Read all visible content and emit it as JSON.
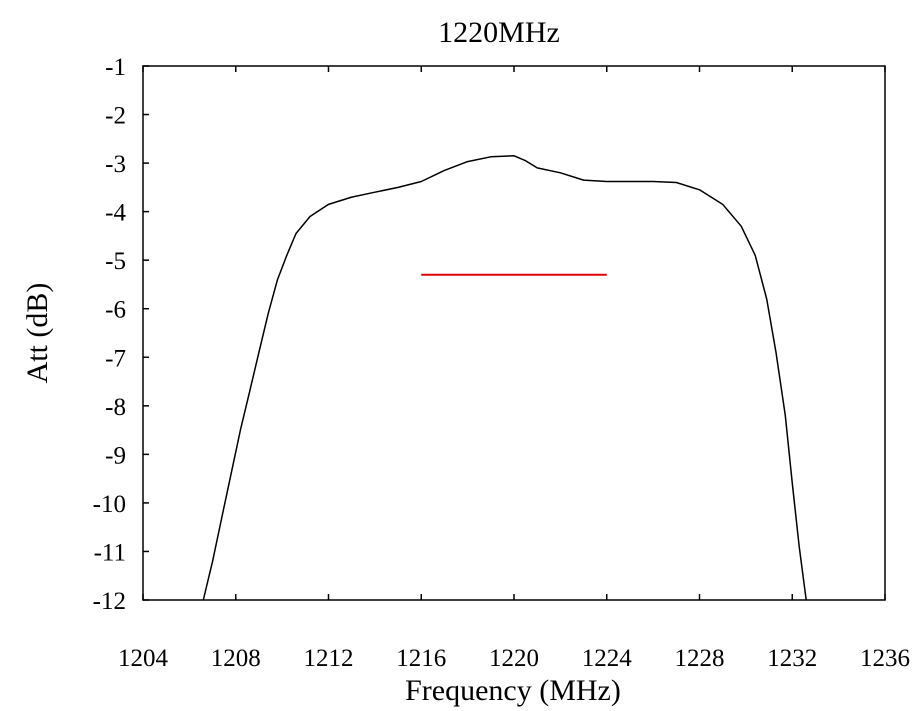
{
  "chart_data": {
    "type": "line",
    "title": "1220MHz",
    "xlabel": "Frequency (MHz)",
    "ylabel": "Att (dB)",
    "xlim": [
      1204,
      1236
    ],
    "ylim": [
      -12,
      -1
    ],
    "xticks": [
      1204,
      1208,
      1212,
      1216,
      1220,
      1224,
      1228,
      1232,
      1236
    ],
    "yticks": [
      -1,
      -2,
      -3,
      -4,
      -5,
      -6,
      -7,
      -8,
      -9,
      -10,
      -11,
      -12
    ],
    "grid": false,
    "colors": {
      "curve": "#000000",
      "marker": "#e00000",
      "frame": "#000000"
    },
    "series": [
      {
        "x": [
          1206.6,
          1207.0,
          1207.4,
          1207.8,
          1208.2,
          1208.6,
          1209.0,
          1209.4,
          1209.8,
          1210.2,
          1210.6,
          1211.2,
          1212.0,
          1213.0,
          1214.0,
          1215.0,
          1216.0,
          1217.0,
          1218.0,
          1219.0,
          1220.0,
          1220.5,
          1221.0,
          1222.0,
          1223.0,
          1224.0,
          1225.0,
          1226.0,
          1227.0,
          1228.0,
          1229.0,
          1229.8,
          1230.4,
          1230.9,
          1231.3,
          1231.7,
          1232.0,
          1232.3,
          1232.6
        ],
        "y": [
          -12.0,
          -11.2,
          -10.3,
          -9.4,
          -8.5,
          -7.7,
          -6.9,
          -6.1,
          -5.4,
          -4.9,
          -4.45,
          -4.1,
          -3.85,
          -3.7,
          -3.6,
          -3.5,
          -3.38,
          -3.15,
          -2.97,
          -2.87,
          -2.85,
          -2.95,
          -3.1,
          -3.2,
          -3.35,
          -3.38,
          -3.38,
          -3.38,
          -3.4,
          -3.55,
          -3.85,
          -4.3,
          -4.9,
          -5.8,
          -6.9,
          -8.2,
          -9.6,
          -10.9,
          -12.0
        ]
      }
    ],
    "reference_line": {
      "x": [
        1216,
        1224
      ],
      "y": -5.3
    }
  }
}
